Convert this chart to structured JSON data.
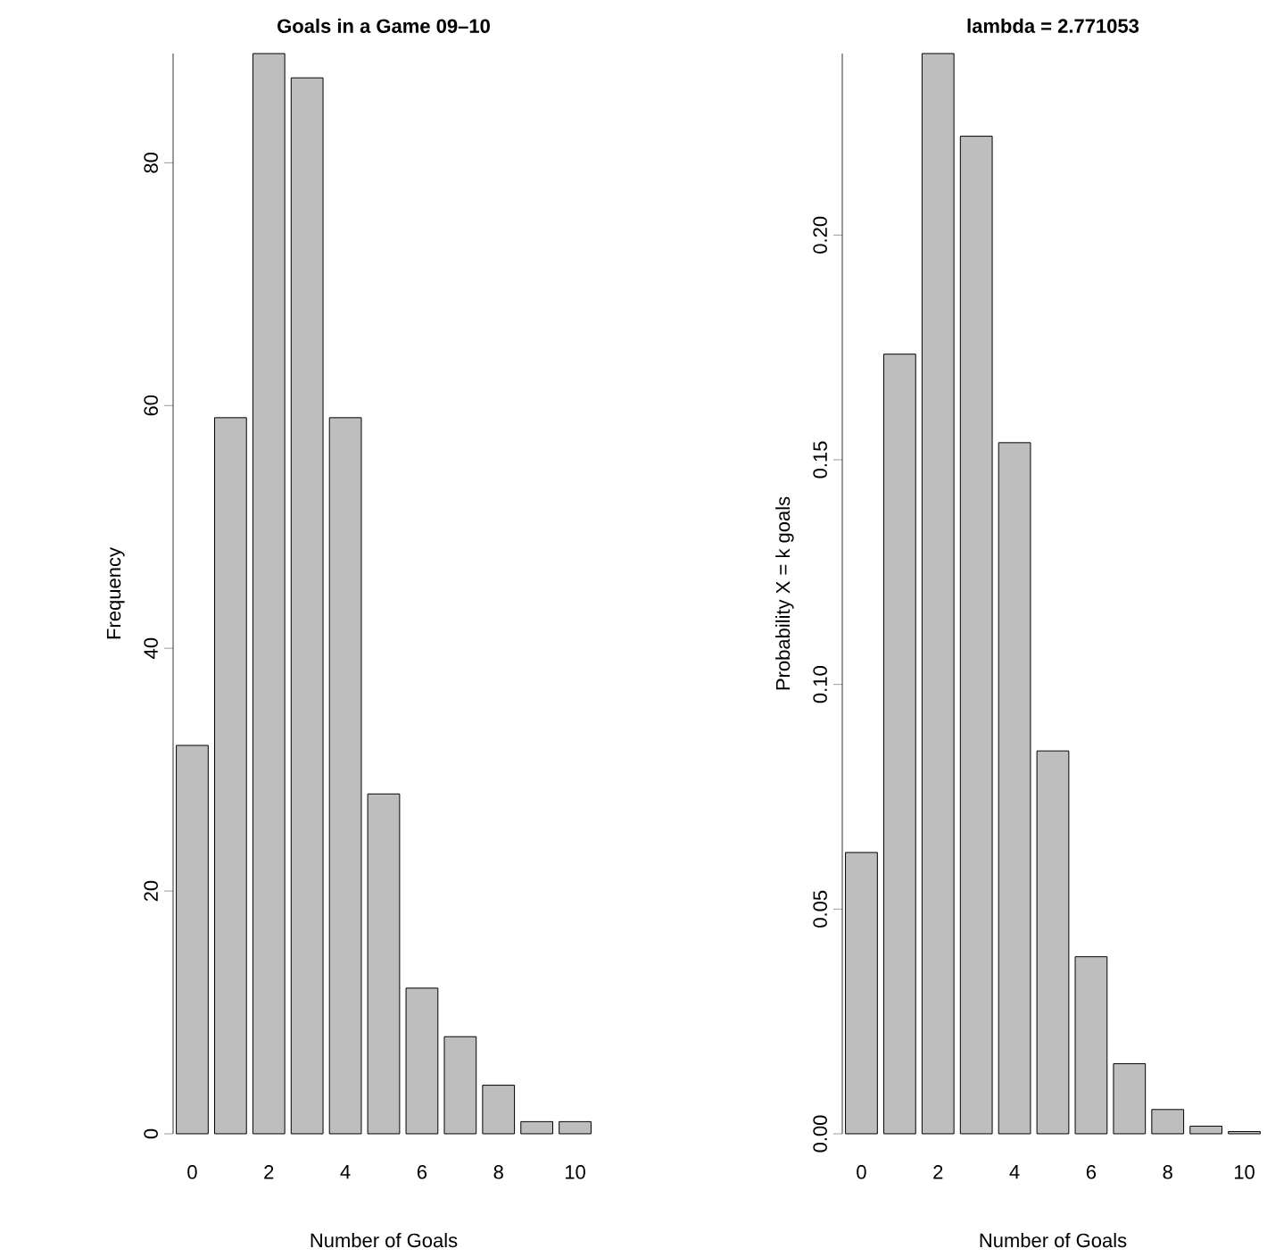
{
  "chart_data": [
    {
      "type": "bar",
      "title": "**Goals in a Game 09–10**",
      "xlabel": "Number of Goals",
      "ylabel": "Frequency",
      "categories": [
        "0",
        null,
        "2",
        null,
        "4",
        null,
        "6",
        null,
        "8",
        null,
        "10"
      ],
      "values": [
        32,
        59,
        89,
        87,
        59,
        28,
        12,
        8,
        4,
        1,
        1
      ],
      "color": "#bebebe",
      "ylim": [
        0,
        89
      ],
      "yticks": [
        0,
        20,
        40,
        60,
        80
      ],
      "grid": false
    },
    {
      "type": "bar",
      "title": "**lambda = 2.771053**",
      "xlabel": "Number of Goals",
      "ylabel": "Probability X = k goals",
      "categories": [
        "0",
        null,
        "2",
        null,
        "4",
        null,
        "6",
        null,
        "8",
        null,
        "10"
      ],
      "values": [
        0.0626,
        0.1735,
        0.2404,
        0.222,
        0.1538,
        0.0852,
        0.0394,
        0.0156,
        0.0054,
        0.0017,
        0.0005
      ],
      "color": "#bebebe",
      "ylim": [
        0,
        0.2404
      ],
      "yticks": [
        {
          "value": 0,
          "label": "0.00"
        },
        {
          "value": 0.05,
          "label": "0.05"
        },
        {
          "value": 0.1,
          "label": "0.10"
        },
        {
          "value": 0.15,
          "label": "0.15"
        },
        {
          "value": 0.2,
          "label": "0.20"
        }
      ],
      "grid": false
    }
  ]
}
